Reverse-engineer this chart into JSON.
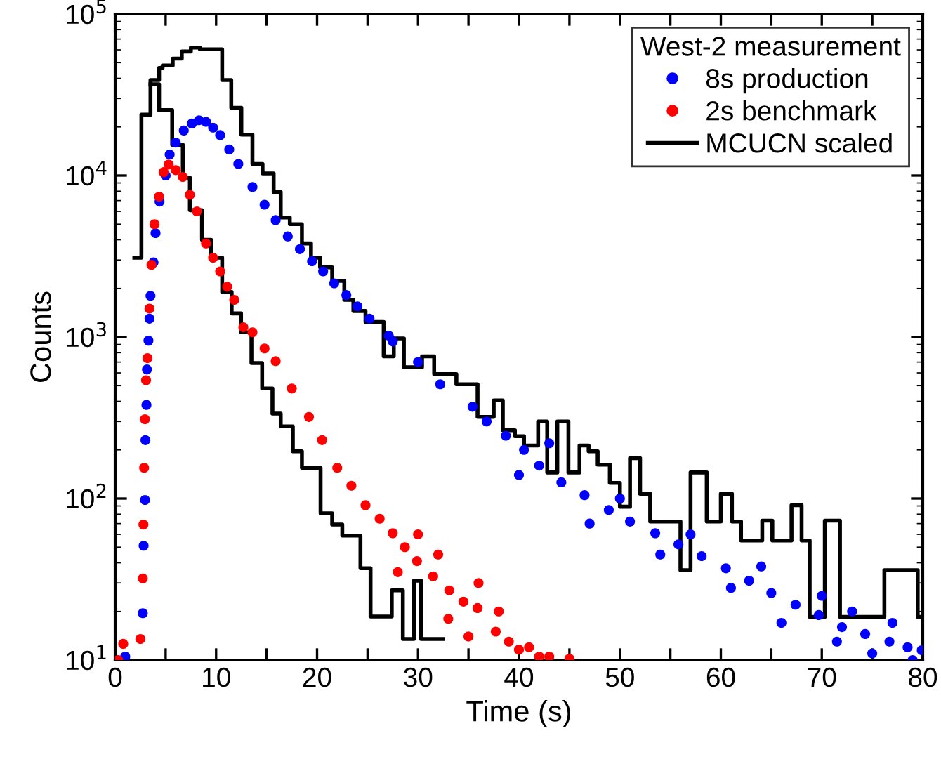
{
  "chart_data": {
    "type": "scatter",
    "xlabel": "Time (s)",
    "ylabel": "Counts",
    "legend_title": "West-2 measurement",
    "legend": "top right",
    "log": "y",
    "grid": false,
    "xlim": [
      0,
      80
    ],
    "ylim": [
      10,
      100000
    ],
    "xticks": [
      0,
      {
        "value": 5,
        "label": null
      },
      10,
      {
        "value": 15,
        "label": null
      },
      20,
      {
        "value": 25,
        "label": null
      },
      30,
      {
        "value": 35,
        "label": null
      },
      40,
      {
        "value": 45,
        "label": null
      },
      50,
      {
        "value": 55,
        "label": null
      },
      60,
      {
        "value": 65,
        "label": null
      },
      70,
      {
        "value": 75,
        "label": null
      },
      80
    ],
    "yticks": [
      {
        "value": 10,
        "label": "10$^{1}$"
      },
      {
        "value": 100,
        "label": "10$^{2}$"
      },
      {
        "value": 1000,
        "label": "10$^{3}$"
      },
      {
        "value": 10000,
        "label": "10$^{4}$"
      },
      {
        "value": 100000,
        "label": "10$^{5}$"
      }
    ],
    "series": [
      {
        "name": "8s production",
        "marker": "circle",
        "color": "#0000ff",
        "x": [
          1.0,
          2.74,
          2.82,
          2.96,
          3.0,
          3.1,
          3.15,
          3.3,
          3.4,
          3.5,
          3.8,
          4.0,
          4.4,
          5.0,
          5.4,
          6.0,
          6.8,
          7.6,
          8.3,
          9.0,
          9.7,
          10.4,
          11.3,
          12.2,
          13.6,
          14.8,
          15.9,
          17.1,
          18.3,
          19.5,
          20.6,
          21.7,
          22.9,
          24.0,
          25.2,
          27.1,
          27.5,
          30,
          32.2,
          35.4,
          36.8,
          38.7,
          40.5,
          42,
          44.2,
          46.5,
          48.9,
          51,
          53.5,
          55.8,
          58.1,
          60.5,
          62.8,
          65,
          67.4,
          69.7,
          72,
          74.3,
          76.7,
          78.5,
          79.9,
          40,
          43,
          47,
          50,
          54,
          57,
          61,
          64,
          66,
          70,
          71.5,
          73,
          75,
          77,
          79
        ],
        "values": [
          10.5,
          19.5,
          51,
          98,
          230,
          380,
          630,
          950,
          1300,
          1800,
          2900,
          4400,
          6900,
          10000,
          13500,
          16000,
          19000,
          21000,
          22000,
          21500,
          19800,
          17800,
          14500,
          11800,
          8500,
          6600,
          5300,
          4200,
          3500,
          2950,
          2550,
          2150,
          1820,
          1550,
          1300,
          1020,
          940,
          700,
          510,
          370,
          300,
          245,
          200,
          160,
          126,
          105,
          85,
          72,
          61,
          52,
          44,
          37,
          31,
          26,
          22,
          19,
          16,
          14.5,
          13,
          12,
          11.5,
          140,
          220,
          70,
          100,
          45,
          60,
          28,
          38,
          17,
          25,
          13,
          20,
          11,
          17,
          10
        ]
      },
      {
        "name": "2s benchmark",
        "marker": "circle",
        "color": "#ff0000",
        "x": [
          0.3,
          0.8,
          2.5,
          2.74,
          2.8,
          2.87,
          2.95,
          3.06,
          3.2,
          3.4,
          3.6,
          3.9,
          4.35,
          4.8,
          5.3,
          6.0,
          6.7,
          7.4,
          8.1,
          9.0,
          9.7,
          10.4,
          11.1,
          11.8,
          12.7,
          13.6,
          14.8,
          15.9,
          17.5,
          19.2,
          20.5,
          22.0,
          23.4,
          24.8,
          26.2,
          27.5,
          28.7,
          29.9,
          31.5,
          33.1,
          34.5,
          35.9,
          37.7,
          39,
          40,
          42,
          45,
          28,
          30,
          32,
          33,
          35,
          36,
          38,
          41,
          43
        ],
        "values": [
          10,
          12.6,
          13.5,
          32,
          69,
          155,
          310,
          540,
          740,
          1500,
          2800,
          5000,
          7400,
          10500,
          11700,
          10800,
          9800,
          7600,
          6000,
          3800,
          3100,
          2550,
          2050,
          1700,
          1150,
          1070,
          850,
          710,
          480,
          320,
          230,
          155,
          120,
          91,
          75,
          61,
          50,
          41,
          33,
          27,
          23,
          21,
          15,
          13,
          11.6,
          10.5,
          10.2,
          35,
          60,
          45,
          18,
          14,
          30,
          20,
          12,
          10.5
        ]
      },
      {
        "name": "MCUCN scaled",
        "type": "step",
        "color": "#000000",
        "x": [
          1.9,
          2.6,
          3.5,
          4.35,
          4.7,
          5.7,
          6.6,
          7.5,
          8.4,
          10.6,
          11.5,
          12.5,
          13.6,
          14.6,
          15.7,
          16.4,
          17.3,
          18.5,
          19.4,
          20.3,
          21.5,
          22.7,
          23.6,
          24.8,
          26.6,
          27.6,
          28.6,
          30.4,
          31.6,
          33.8,
          35.9,
          37.5,
          38.4,
          39.6,
          40.5,
          41.9,
          42.8,
          43.8,
          44.9,
          46,
          46.9,
          47.8,
          49,
          50,
          51,
          52,
          53,
          56,
          57,
          58.6,
          60,
          61.1,
          62,
          64.1,
          65.1,
          67,
          68,
          68.8,
          70.3,
          71.8,
          76.2,
          79.5,
          80
        ],
        "values": [
          3100,
          23800,
          39000,
          46400,
          48000,
          53000,
          58600,
          62000,
          60500,
          39000,
          26300,
          17900,
          11800,
          10300,
          7900,
          5500,
          5000,
          3800,
          3100,
          2700,
          2230,
          1700,
          1450,
          1240,
          760,
          980,
          650,
          760,
          590,
          510,
          320,
          405,
          265,
          243,
          213,
          300,
          145,
          300,
          145,
          213,
          196,
          162,
          125,
          89,
          178,
          107,
          72,
          36,
          145,
          72,
          107,
          72,
          55,
          73,
          55,
          91,
          55,
          18.5,
          73,
          18.5,
          36,
          18.5,
          18.5
        ]
      },
      {
        "type": "step",
        "color": "#000000",
        "x": [
          3.5,
          4.35,
          5.65,
          6.7,
          7.4,
          8.6,
          9.5,
          10.6,
          11.54,
          12.47,
          13.5,
          14.56,
          15.58,
          16.4,
          17.6,
          18.5,
          20.35,
          21.5,
          22.5,
          24.3,
          25.3,
          27.4,
          28.5,
          29.6,
          30.3,
          32.5
        ],
        "values": [
          36700,
          25400,
          15500,
          9700,
          6100,
          4000,
          3100,
          1900,
          1400,
          1070,
          690,
          480,
          336,
          280,
          196,
          155,
          81,
          69,
          59,
          37,
          18.6,
          27,
          13.5,
          31,
          13.5,
          13.5
        ]
      }
    ]
  }
}
